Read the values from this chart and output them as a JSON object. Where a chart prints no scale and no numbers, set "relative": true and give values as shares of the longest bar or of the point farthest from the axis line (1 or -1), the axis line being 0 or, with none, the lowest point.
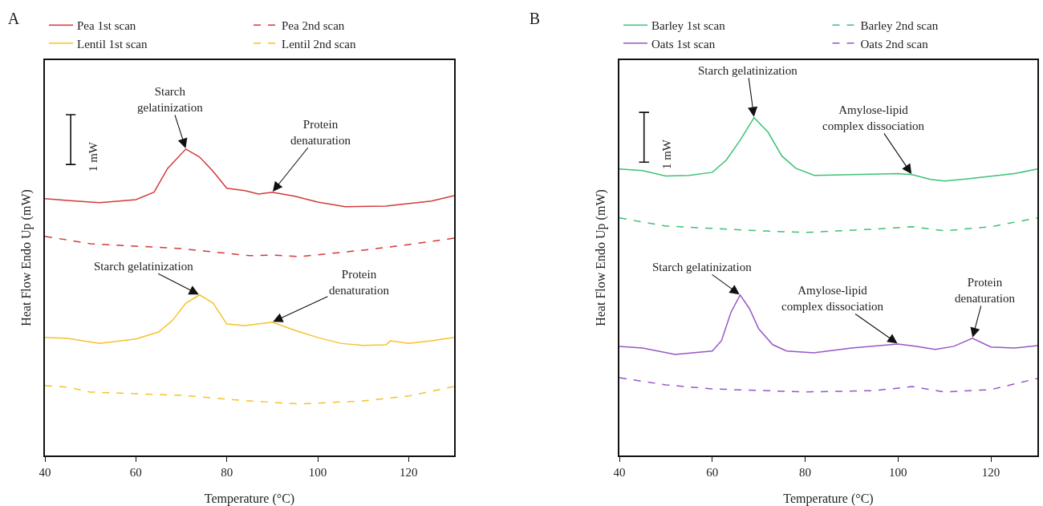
{
  "chart_data": [
    {
      "type": "line",
      "title": "A",
      "xlabel": "Temperature (°C)",
      "ylabel": "Heat Flow Endo Up (mW)",
      "relative": true,
      "legend": "top",
      "xlim": [
        40,
        130
      ],
      "xticks": [
        40,
        60,
        80,
        100,
        120
      ],
      "series": [
        {
          "name": "Pea 1st scan",
          "color": "#d23a3a",
          "line_style": "solid",
          "x": [
            40,
            45,
            52,
            60,
            64,
            67,
            71,
            74,
            77,
            80,
            84,
            87,
            90,
            95,
            100,
            106,
            115,
            125,
            130
          ],
          "values": [
            0.838,
            0.832,
            0.825,
            0.835,
            0.859,
            0.937,
            1,
            0.974,
            0.927,
            0.872,
            0.864,
            0.853,
            0.859,
            0.846,
            0.827,
            0.812,
            0.814,
            0.83,
            0.848
          ]
        },
        {
          "name": "Pea 2nd scan",
          "color": "#d23a3a",
          "line_style": "dashed",
          "x": [
            40,
            50,
            60,
            70,
            85,
            90,
            96,
            110,
            120,
            130
          ],
          "values": [
            0.715,
            0.691,
            0.683,
            0.675,
            0.652,
            0.654,
            0.649,
            0.67,
            0.688,
            0.709
          ]
        },
        {
          "name": "Lentil 1st scan",
          "color": "#f5c22a",
          "line_style": "solid",
          "x": [
            40,
            45,
            52,
            60,
            65,
            68,
            71,
            74,
            77,
            80,
            84,
            90,
            95,
            100,
            105,
            110,
            115,
            116,
            120,
            125,
            130
          ],
          "values": [
            0.385,
            0.382,
            0.366,
            0.38,
            0.403,
            0.44,
            0.497,
            0.524,
            0.497,
            0.429,
            0.424,
            0.435,
            0.408,
            0.385,
            0.366,
            0.359,
            0.361,
            0.374,
            0.366,
            0.374,
            0.385
          ]
        },
        {
          "name": "Lentil 2nd scan",
          "color": "#f5c22a",
          "line_style": "dashed",
          "x": [
            40,
            45,
            50,
            70,
            85,
            96,
            110,
            120,
            130
          ],
          "values": [
            0.228,
            0.223,
            0.207,
            0.196,
            0.178,
            0.168,
            0.178,
            0.194,
            0.225
          ]
        }
      ],
      "annotations": [
        {
          "text": "Starch\ngelatinization",
          "x": 71,
          "y": 1
        },
        {
          "text": "Protein\ndenaturation",
          "x": 90,
          "y": 0.859
        },
        {
          "text": "Starch gelatinization",
          "x": 74,
          "y": 0.524
        },
        {
          "text": "Protein\ndenaturation",
          "x": 90,
          "y": 0.435
        },
        "1 mW"
      ]
    },
    {
      "type": "line",
      "title": "B",
      "xlabel": "Temperature (°C)",
      "ylabel": "Heat Flow Endo Up (mW)",
      "relative": true,
      "legend": "top",
      "xlim": [
        40,
        130
      ],
      "xticks": [
        40,
        60,
        80,
        100,
        120
      ],
      "series": [
        {
          "name": "Barley 1st scan",
          "color": "#3cc273",
          "line_style": "solid",
          "x": [
            40,
            45,
            50,
            55,
            60,
            63,
            66,
            69,
            72,
            75,
            78,
            82,
            90,
            100,
            103,
            107,
            110,
            115,
            125,
            130
          ],
          "values": [
            0.848,
            0.843,
            0.827,
            0.829,
            0.838,
            0.874,
            0.933,
            1,
            0.957,
            0.886,
            0.85,
            0.829,
            0.831,
            0.834,
            0.831,
            0.817,
            0.812,
            0.819,
            0.834,
            0.848
          ]
        },
        {
          "name": "Barley 2nd scan",
          "color": "#3cc273",
          "line_style": "dashed",
          "x": [
            40,
            50,
            70,
            80,
            95,
            103,
            110,
            120,
            130
          ],
          "values": [
            0.703,
            0.679,
            0.665,
            0.66,
            0.67,
            0.677,
            0.665,
            0.677,
            0.703
          ]
        },
        {
          "name": "Oats 1st scan",
          "color": "#9657c6",
          "line_style": "solid",
          "x": [
            40,
            45,
            52,
            60,
            62,
            64,
            66,
            68,
            70,
            73,
            76,
            82,
            90,
            100,
            104,
            108,
            112,
            116,
            120,
            125,
            130
          ],
          "values": [
            0.323,
            0.318,
            0.299,
            0.309,
            0.34,
            0.423,
            0.475,
            0.435,
            0.375,
            0.328,
            0.309,
            0.304,
            0.318,
            0.33,
            0.323,
            0.314,
            0.323,
            0.347,
            0.321,
            0.318,
            0.325
          ]
        },
        {
          "name": "Oats 2nd scan",
          "color": "#9657c6",
          "line_style": "dashed",
          "x": [
            40,
            50,
            60,
            80,
            95,
            103,
            110,
            120,
            130
          ],
          "values": [
            0.23,
            0.209,
            0.197,
            0.188,
            0.192,
            0.204,
            0.188,
            0.195,
            0.228
          ]
        }
      ],
      "annotations": [
        {
          "text": "Starch gelatinization",
          "x": 69,
          "y": 1
        },
        {
          "text": "Amylose-lipid\ncomplex dissociation",
          "x": 103,
          "y": 0.831
        },
        {
          "text": "Starch gelatinization",
          "x": 66,
          "y": 0.475
        },
        {
          "text": "Amylose-lipid\ncomplex dissociation",
          "x": 100,
          "y": 0.33
        },
        {
          "text": "Protein\ndenaturation",
          "x": 116,
          "y": 0.347
        },
        "1 mW"
      ]
    }
  ]
}
